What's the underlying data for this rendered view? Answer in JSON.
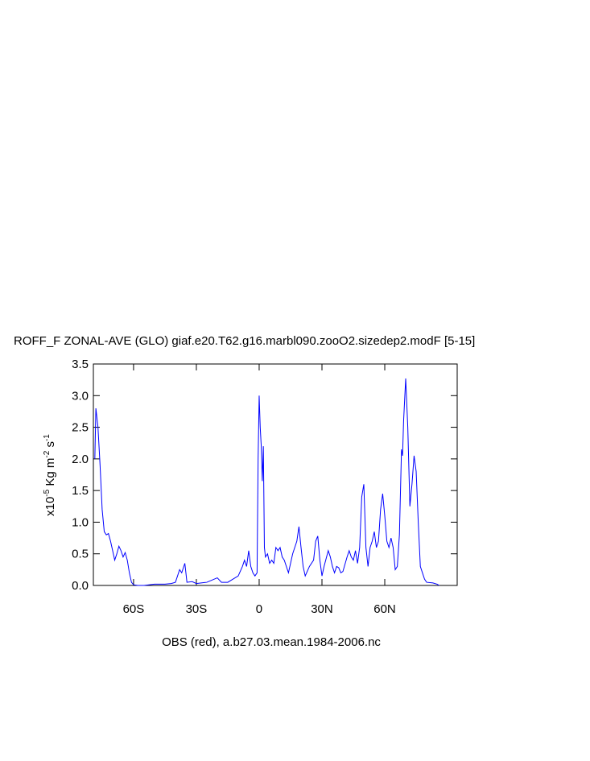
{
  "chart_data": {
    "type": "line",
    "title": "ROFF_F ZONAL-AVE (GLO) giaf.e20.T62.g16.marbl090.zooO2.sizedep2.modF [5-15]",
    "footer": "OBS (red), a.b27.03.mean.1984-2006.nc",
    "ylabel": [
      {
        "text": "x10"
      },
      {
        "text": "-5",
        "sup": true
      },
      {
        "text": " Kg m"
      },
      {
        "text": "-2",
        "sup": true
      },
      {
        "text": " s"
      },
      {
        "text": "-1",
        "sup": true
      }
    ],
    "color": "#0000ff",
    "xlim": [
      -79.2,
      94.6
    ],
    "ylim": [
      0,
      3.5
    ],
    "xticks": [
      {
        "value": -60,
        "label": "60S"
      },
      {
        "value": -30,
        "label": "30S"
      },
      0,
      {
        "value": 30,
        "label": "30N"
      },
      {
        "value": 60,
        "label": "60N"
      }
    ],
    "yticks": [
      {
        "value": 0,
        "label": "0.0"
      },
      0.5,
      {
        "value": 1,
        "label": "1.0"
      },
      1.5,
      {
        "value": 2,
        "label": "2.0"
      },
      2.5,
      {
        "value": 3,
        "label": "3.0"
      },
      3.5
    ],
    "x": [
      -78.5,
      -78,
      -77,
      -76,
      -75,
      -74,
      -73,
      -72,
      -71,
      -70,
      -69,
      -68,
      -67,
      -66,
      -65,
      -64,
      -63,
      -62,
      -61,
      -60,
      -58,
      -55,
      -50,
      -45,
      -42,
      -40,
      -38,
      -37,
      -35.5,
      -34.5,
      -32,
      -30,
      -25,
      -20,
      -18,
      -15,
      -10,
      -8,
      -7,
      -6,
      -5,
      -4,
      -3,
      -2,
      -1,
      -0.5,
      0,
      0.5,
      1,
      1.5,
      2,
      2.5,
      3,
      4,
      5,
      6,
      7,
      8,
      9,
      10,
      11,
      12,
      14,
      16,
      18,
      19,
      20,
      21,
      22,
      24,
      26,
      27,
      28,
      29,
      30,
      31,
      33,
      34,
      35,
      36,
      37,
      38,
      39,
      40,
      42,
      43,
      44,
      45,
      46,
      47,
      48,
      49,
      50,
      51,
      52,
      53,
      54,
      55,
      56,
      57,
      58,
      59,
      60,
      61,
      62,
      63,
      64,
      65,
      66,
      67,
      68,
      68.5,
      69,
      70,
      71,
      72,
      73,
      74,
      75,
      76,
      77,
      78,
      79,
      80,
      83,
      85,
      86
    ],
    "values": [
      2.0,
      2.8,
      2.5,
      1.9,
      1.2,
      0.85,
      0.8,
      0.82,
      0.7,
      0.55,
      0.4,
      0.5,
      0.62,
      0.55,
      0.45,
      0.52,
      0.4,
      0.2,
      0.05,
      0.01,
      0.0,
      0.0,
      0.02,
      0.02,
      0.03,
      0.05,
      0.25,
      0.2,
      0.35,
      0.05,
      0.06,
      0.03,
      0.05,
      0.12,
      0.05,
      0.05,
      0.15,
      0.3,
      0.4,
      0.3,
      0.55,
      0.3,
      0.2,
      0.15,
      0.2,
      2.0,
      3.0,
      2.5,
      2.2,
      1.65,
      2.2,
      0.6,
      0.45,
      0.5,
      0.35,
      0.4,
      0.35,
      0.6,
      0.55,
      0.6,
      0.45,
      0.4,
      0.2,
      0.5,
      0.7,
      0.93,
      0.6,
      0.3,
      0.15,
      0.3,
      0.4,
      0.7,
      0.78,
      0.4,
      0.15,
      0.3,
      0.55,
      0.45,
      0.3,
      0.2,
      0.3,
      0.28,
      0.2,
      0.22,
      0.45,
      0.55,
      0.45,
      0.4,
      0.55,
      0.35,
      0.6,
      1.4,
      1.6,
      0.6,
      0.3,
      0.6,
      0.7,
      0.85,
      0.6,
      0.7,
      1.2,
      1.45,
      1.1,
      0.7,
      0.6,
      0.75,
      0.6,
      0.25,
      0.3,
      0.8,
      2.15,
      2.05,
      2.6,
      3.27,
      2.5,
      1.25,
      1.6,
      2.05,
      1.8,
      1.0,
      0.3,
      0.2,
      0.1,
      0.05,
      0.04,
      0.02,
      0.0
    ]
  }
}
